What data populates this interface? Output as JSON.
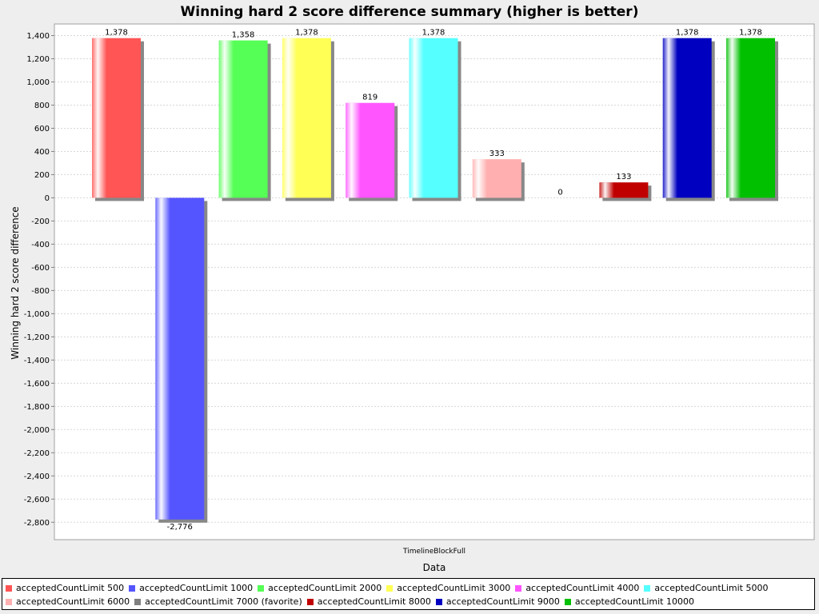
{
  "chart_data": {
    "type": "bar",
    "title": "Winning hard 2 score difference summary (higher is better)",
    "xlabel": "Data",
    "ylabel": "Winning hard 2 score difference",
    "categories": [
      "TimelineBlockFull"
    ],
    "ylim": [
      -2950,
      1500
    ],
    "yticks": [
      1400,
      1200,
      1000,
      800,
      600,
      400,
      200,
      0,
      -200,
      -400,
      -600,
      -800,
      -1000,
      -1200,
      -1400,
      -1600,
      -1800,
      -2000,
      -2200,
      -2400,
      -2600,
      -2800
    ],
    "ytick_labels": [
      "1,400",
      "1,200",
      "1,000",
      "800",
      "600",
      "400",
      "200",
      "0",
      "-200",
      "-400",
      "-600",
      "-800",
      "-1,000",
      "-1,200",
      "-1,400",
      "-1,600",
      "-1,800",
      "-2,000",
      "-2,200",
      "-2,400",
      "-2,600",
      "-2,800"
    ],
    "grid": true,
    "legend_position": "bottom",
    "series": [
      {
        "name": "acceptedCountLimit 500",
        "values": [
          1378
        ],
        "label": "1,378",
        "color": "#ff5555"
      },
      {
        "name": "acceptedCountLimit 1000",
        "values": [
          -2776
        ],
        "label": "-2,776",
        "color": "#5555ff"
      },
      {
        "name": "acceptedCountLimit 2000",
        "values": [
          1358
        ],
        "label": "1,358",
        "color": "#55ff55"
      },
      {
        "name": "acceptedCountLimit 3000",
        "values": [
          1378
        ],
        "label": "1,378",
        "color": "#ffff55"
      },
      {
        "name": "acceptedCountLimit 4000",
        "values": [
          819
        ],
        "label": "819",
        "color": "#ff55ff"
      },
      {
        "name": "acceptedCountLimit 5000",
        "values": [
          1378
        ],
        "label": "1,378",
        "color": "#55ffff"
      },
      {
        "name": "acceptedCountLimit 6000",
        "values": [
          333
        ],
        "label": "333",
        "color": "#ffafaf"
      },
      {
        "name": "acceptedCountLimit 7000 (favorite)",
        "values": [
          0
        ],
        "label": "0",
        "color": "#808080"
      },
      {
        "name": "acceptedCountLimit 8000",
        "values": [
          133
        ],
        "label": "133",
        "color": "#c00000"
      },
      {
        "name": "acceptedCountLimit 9000",
        "values": [
          1378
        ],
        "label": "1,378",
        "color": "#0000c0"
      },
      {
        "name": "acceptedCountLimit 10000",
        "values": [
          1378
        ],
        "label": "1,378",
        "color": "#00c000"
      }
    ]
  }
}
